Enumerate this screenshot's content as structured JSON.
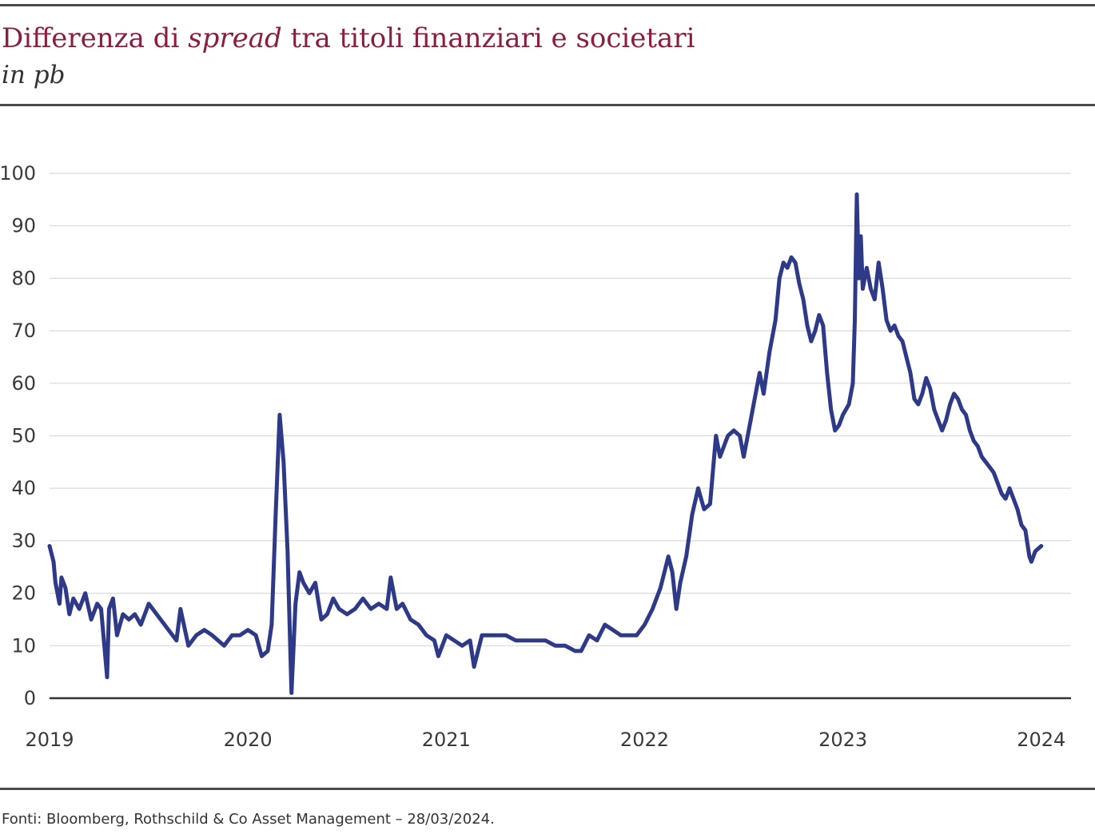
{
  "header": {
    "title_pre": "Differenza di ",
    "title_italic": "spread",
    "title_post": " tra titoli finanziari e societari",
    "subtitle": "in pb"
  },
  "footer": {
    "source": "Fonti: Bloomberg, Rothschild & Co Asset Management – 28/03/2024."
  },
  "colors": {
    "line": "#2e3a87",
    "title": "#8b1e3f",
    "grid": "#d9d9d9",
    "axis": "#333333"
  },
  "chart_data": {
    "type": "line",
    "title": "Differenza di spread tra titoli finanziari e societari",
    "subtitle": "in pb",
    "xlabel": "",
    "ylabel": "",
    "ylim": [
      0,
      100
    ],
    "xlim": [
      2019.0,
      2024.15
    ],
    "y_ticks": [
      "0",
      "10",
      "20",
      "30",
      "40",
      "50",
      "60",
      "70",
      "80",
      "90",
      "100"
    ],
    "x_ticks": [
      {
        "label": "2019",
        "value": 2019
      },
      {
        "label": "2020",
        "value": 2020
      },
      {
        "label": "2021",
        "value": 2021
      },
      {
        "label": "2022",
        "value": 2022
      },
      {
        "label": "2023",
        "value": 2023
      },
      {
        "label": "2024",
        "value": 2024
      }
    ],
    "grid": true,
    "series": [
      {
        "points": [
          [
            2019.0,
            29
          ],
          [
            2019.02,
            26
          ],
          [
            2019.03,
            22
          ],
          [
            2019.05,
            18
          ],
          [
            2019.06,
            23
          ],
          [
            2019.08,
            21
          ],
          [
            2019.1,
            16
          ],
          [
            2019.12,
            19
          ],
          [
            2019.15,
            17
          ],
          [
            2019.18,
            20
          ],
          [
            2019.21,
            15
          ],
          [
            2019.24,
            18
          ],
          [
            2019.26,
            17
          ],
          [
            2019.29,
            4
          ],
          [
            2019.3,
            17
          ],
          [
            2019.32,
            19
          ],
          [
            2019.34,
            12
          ],
          [
            2019.37,
            16
          ],
          [
            2019.4,
            15
          ],
          [
            2019.43,
            16
          ],
          [
            2019.46,
            14
          ],
          [
            2019.5,
            18
          ],
          [
            2019.54,
            16
          ],
          [
            2019.58,
            14
          ],
          [
            2019.62,
            12
          ],
          [
            2019.64,
            11
          ],
          [
            2019.66,
            17
          ],
          [
            2019.7,
            10
          ],
          [
            2019.74,
            12
          ],
          [
            2019.78,
            13
          ],
          [
            2019.82,
            12
          ],
          [
            2019.85,
            11
          ],
          [
            2019.88,
            10
          ],
          [
            2019.92,
            12
          ],
          [
            2019.96,
            12
          ],
          [
            2020.0,
            13
          ],
          [
            2020.04,
            12
          ],
          [
            2020.07,
            8
          ],
          [
            2020.1,
            9
          ],
          [
            2020.12,
            14
          ],
          [
            2020.14,
            35
          ],
          [
            2020.16,
            54
          ],
          [
            2020.18,
            45
          ],
          [
            2020.2,
            28
          ],
          [
            2020.22,
            1
          ],
          [
            2020.24,
            18
          ],
          [
            2020.26,
            24
          ],
          [
            2020.28,
            22
          ],
          [
            2020.31,
            20
          ],
          [
            2020.34,
            22
          ],
          [
            2020.37,
            15
          ],
          [
            2020.4,
            16
          ],
          [
            2020.43,
            19
          ],
          [
            2020.46,
            17
          ],
          [
            2020.5,
            16
          ],
          [
            2020.54,
            17
          ],
          [
            2020.58,
            19
          ],
          [
            2020.62,
            17
          ],
          [
            2020.66,
            18
          ],
          [
            2020.7,
            17
          ],
          [
            2020.72,
            23
          ],
          [
            2020.75,
            17
          ],
          [
            2020.78,
            18
          ],
          [
            2020.82,
            15
          ],
          [
            2020.86,
            14
          ],
          [
            2020.9,
            12
          ],
          [
            2020.94,
            11
          ],
          [
            2020.96,
            8
          ],
          [
            2021.0,
            12
          ],
          [
            2021.04,
            11
          ],
          [
            2021.08,
            10
          ],
          [
            2021.12,
            11
          ],
          [
            2021.14,
            6
          ],
          [
            2021.18,
            12
          ],
          [
            2021.22,
            12
          ],
          [
            2021.26,
            12
          ],
          [
            2021.3,
            12
          ],
          [
            2021.35,
            11
          ],
          [
            2021.4,
            11
          ],
          [
            2021.45,
            11
          ],
          [
            2021.5,
            11
          ],
          [
            2021.55,
            10
          ],
          [
            2021.6,
            10
          ],
          [
            2021.65,
            9
          ],
          [
            2021.68,
            9
          ],
          [
            2021.72,
            12
          ],
          [
            2021.76,
            11
          ],
          [
            2021.8,
            14
          ],
          [
            2021.84,
            13
          ],
          [
            2021.88,
            12
          ],
          [
            2021.92,
            12
          ],
          [
            2021.96,
            12
          ],
          [
            2022.0,
            14
          ],
          [
            2022.04,
            17
          ],
          [
            2022.08,
            21
          ],
          [
            2022.1,
            24
          ],
          [
            2022.12,
            27
          ],
          [
            2022.14,
            24
          ],
          [
            2022.16,
            17
          ],
          [
            2022.18,
            22
          ],
          [
            2022.21,
            27
          ],
          [
            2022.24,
            35
          ],
          [
            2022.27,
            40
          ],
          [
            2022.3,
            36
          ],
          [
            2022.33,
            37
          ],
          [
            2022.36,
            50
          ],
          [
            2022.38,
            46
          ],
          [
            2022.4,
            48
          ],
          [
            2022.42,
            50
          ],
          [
            2022.45,
            51
          ],
          [
            2022.48,
            50
          ],
          [
            2022.5,
            46
          ],
          [
            2022.53,
            52
          ],
          [
            2022.56,
            58
          ],
          [
            2022.58,
            62
          ],
          [
            2022.6,
            58
          ],
          [
            2022.63,
            66
          ],
          [
            2022.66,
            72
          ],
          [
            2022.68,
            80
          ],
          [
            2022.7,
            83
          ],
          [
            2022.72,
            82
          ],
          [
            2022.74,
            84
          ],
          [
            2022.76,
            83
          ],
          [
            2022.78,
            79
          ],
          [
            2022.8,
            76
          ],
          [
            2022.82,
            71
          ],
          [
            2022.84,
            68
          ],
          [
            2022.86,
            70
          ],
          [
            2022.88,
            73
          ],
          [
            2022.9,
            71
          ],
          [
            2022.92,
            62
          ],
          [
            2022.94,
            55
          ],
          [
            2022.96,
            51
          ],
          [
            2022.98,
            52
          ],
          [
            2023.0,
            54
          ],
          [
            2023.03,
            56
          ],
          [
            2023.05,
            60
          ],
          [
            2023.06,
            72
          ],
          [
            2023.07,
            96
          ],
          [
            2023.08,
            80
          ],
          [
            2023.09,
            88
          ],
          [
            2023.1,
            78
          ],
          [
            2023.12,
            82
          ],
          [
            2023.14,
            78
          ],
          [
            2023.16,
            76
          ],
          [
            2023.18,
            83
          ],
          [
            2023.2,
            78
          ],
          [
            2023.22,
            72
          ],
          [
            2023.24,
            70
          ],
          [
            2023.26,
            71
          ],
          [
            2023.28,
            69
          ],
          [
            2023.3,
            68
          ],
          [
            2023.32,
            65
          ],
          [
            2023.34,
            62
          ],
          [
            2023.36,
            57
          ],
          [
            2023.38,
            56
          ],
          [
            2023.4,
            58
          ],
          [
            2023.42,
            61
          ],
          [
            2023.44,
            59
          ],
          [
            2023.46,
            55
          ],
          [
            2023.48,
            53
          ],
          [
            2023.5,
            51
          ],
          [
            2023.52,
            53
          ],
          [
            2023.54,
            56
          ],
          [
            2023.56,
            58
          ],
          [
            2023.58,
            57
          ],
          [
            2023.6,
            55
          ],
          [
            2023.62,
            54
          ],
          [
            2023.64,
            51
          ],
          [
            2023.66,
            49
          ],
          [
            2023.68,
            48
          ],
          [
            2023.7,
            46
          ],
          [
            2023.72,
            45
          ],
          [
            2023.74,
            44
          ],
          [
            2023.76,
            43
          ],
          [
            2023.78,
            41
          ],
          [
            2023.8,
            39
          ],
          [
            2023.82,
            38
          ],
          [
            2023.84,
            40
          ],
          [
            2023.86,
            38
          ],
          [
            2023.88,
            36
          ],
          [
            2023.9,
            33
          ],
          [
            2023.92,
            32
          ],
          [
            2023.94,
            27
          ],
          [
            2023.95,
            26
          ],
          [
            2023.97,
            28
          ],
          [
            2024.0,
            29
          ]
        ]
      }
    ]
  }
}
